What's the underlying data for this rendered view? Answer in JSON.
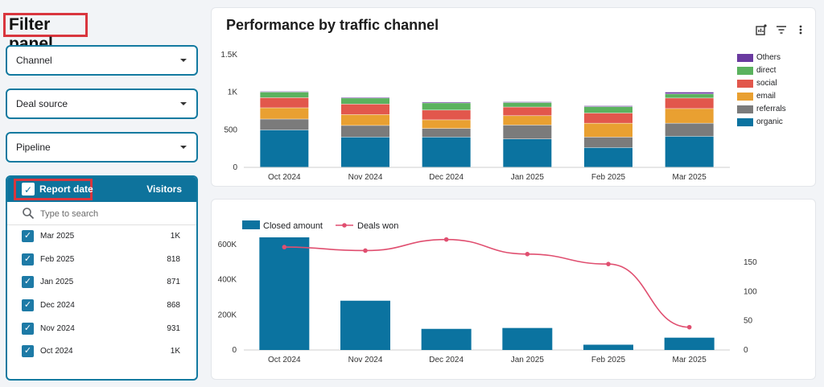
{
  "filter_panel": {
    "title": "Filter panel",
    "dropdowns": [
      {
        "label": "Channel"
      },
      {
        "label": "Deal source"
      },
      {
        "label": "Pipeline"
      }
    ],
    "table": {
      "header_label": "Report date",
      "header_metric": "Visitors",
      "search_placeholder": "Type to search",
      "rows": [
        {
          "label": "Mar 2025",
          "value": "1K"
        },
        {
          "label": "Feb 2025",
          "value": "818"
        },
        {
          "label": "Jan 2025",
          "value": "871"
        },
        {
          "label": "Dec 2024",
          "value": "868"
        },
        {
          "label": "Nov 2024",
          "value": "931"
        },
        {
          "label": "Oct 2024",
          "value": "1K"
        }
      ]
    }
  },
  "colors": {
    "organic": "#0b73a0",
    "referrals": "#7b7b7b",
    "email": "#e9a031",
    "social": "#e2574c",
    "direct": "#5bb25e",
    "others": "#6a3aa0",
    "line": "#e04f70",
    "panel_border": "#137aa0"
  },
  "icons": {
    "toolbar": [
      "insights-icon",
      "filter-icon",
      "more-vert-icon"
    ],
    "search": "search-icon"
  },
  "chart_data": [
    {
      "type": "bar",
      "stacked": true,
      "title": "Performance by traffic channel",
      "categories": [
        "Oct 2024",
        "Nov 2024",
        "Dec 2024",
        "Jan 2025",
        "Feb 2025",
        "Mar 2025"
      ],
      "series": [
        {
          "name": "organic",
          "values": [
            495,
            400,
            400,
            375,
            260,
            410
          ]
        },
        {
          "name": "referrals",
          "values": [
            145,
            155,
            115,
            185,
            140,
            175
          ]
        },
        {
          "name": "email",
          "values": [
            150,
            145,
            115,
            125,
            185,
            195
          ]
        },
        {
          "name": "social",
          "values": [
            135,
            140,
            130,
            115,
            135,
            140
          ]
        },
        {
          "name": "direct",
          "values": [
            75,
            80,
            95,
            60,
            85,
            55
          ]
        },
        {
          "name": "Others",
          "values": [
            10,
            11,
            13,
            11,
            13,
            25
          ]
        }
      ],
      "legend_order": [
        "Others",
        "direct",
        "social",
        "email",
        "referrals",
        "organic"
      ],
      "ylim": [
        0,
        1500
      ],
      "yticks": [
        0,
        500,
        1000,
        1500
      ],
      "ytick_labels": [
        "0",
        "500",
        "1K",
        "1.5K"
      ],
      "legend_position": "right"
    },
    {
      "type": "bar+line",
      "categories": [
        "Oct 2024",
        "Nov 2024",
        "Dec 2024",
        "Jan 2025",
        "Feb 2025",
        "Mar 2025"
      ],
      "series": [
        {
          "name": "Closed amount",
          "type": "bar",
          "axis": "left",
          "values": [
            640000,
            280000,
            120000,
            125000,
            30000,
            70000
          ]
        },
        {
          "name": "Deals won",
          "type": "line",
          "axis": "right",
          "values": [
            176,
            170,
            189,
            164,
            147,
            39
          ]
        }
      ],
      "y_left": {
        "lim": [
          0,
          640000
        ],
        "ticks": [
          0,
          200000,
          400000,
          600000
        ],
        "labels": [
          "0",
          "200K",
          "400K",
          "600K"
        ]
      },
      "y_right": {
        "lim": [
          0,
          200
        ],
        "ticks": [
          0,
          50,
          100,
          150
        ],
        "labels": [
          "0",
          "50",
          "100",
          "150"
        ]
      },
      "legend_position": "top-left"
    }
  ]
}
